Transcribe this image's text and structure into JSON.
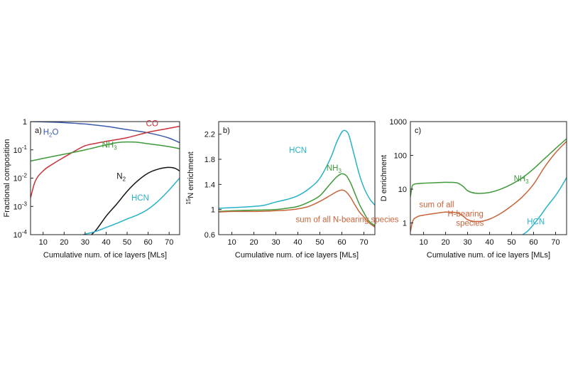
{
  "colors": {
    "h2o": "#3b5bab",
    "co": "#c8323a",
    "nh3": "#3f9a3a",
    "n2": "#111111",
    "hcn": "#27b2c8",
    "sum": "#c8643a",
    "axis": "#222222"
  },
  "chart_data": [
    {
      "type": "line",
      "panel": "a)",
      "xlabel": "Cumulative num. of ice layers [MLs]",
      "ylabel": "Fractional composition",
      "xlim": [
        4,
        75
      ],
      "ylim": [
        0.0001,
        1
      ],
      "yscale": "log",
      "xticks": [
        10,
        20,
        30,
        40,
        50,
        60,
        70
      ],
      "yticks": [
        {
          "v": 1,
          "base": "1",
          "exp": ""
        },
        {
          "v": 0.1,
          "base": "10",
          "exp": "-1"
        },
        {
          "v": 0.01,
          "base": "10",
          "exp": "-2"
        },
        {
          "v": 0.001,
          "base": "10",
          "exp": "-3"
        },
        {
          "v": 0.0001,
          "base": "10",
          "exp": "-4"
        }
      ],
      "series": [
        {
          "key": "h2o",
          "label": "H",
          "sub": "2",
          "suffix": "O",
          "labelAt": [
            10,
            0.34
          ],
          "x": [
            4,
            10,
            20,
            30,
            40,
            50,
            60,
            70,
            75
          ],
          "y": [
            1.0,
            0.98,
            0.92,
            0.82,
            0.68,
            0.52,
            0.4,
            0.26,
            0.18
          ]
        },
        {
          "key": "co",
          "label": "CO",
          "sub": "",
          "suffix": "",
          "labelAt": [
            59,
            0.68
          ],
          "x": [
            4,
            6,
            10,
            15,
            20,
            25,
            30,
            35,
            40,
            50,
            60,
            70,
            75
          ],
          "y": [
            0.002,
            0.007,
            0.018,
            0.033,
            0.055,
            0.09,
            0.14,
            0.17,
            0.2,
            0.27,
            0.42,
            0.58,
            0.68
          ]
        },
        {
          "key": "nh3",
          "label": "NH",
          "sub": "3",
          "suffix": "",
          "labelAt": [
            38,
            0.12
          ],
          "x": [
            4,
            10,
            20,
            30,
            40,
            45,
            50,
            55,
            60,
            70,
            75
          ],
          "y": [
            0.04,
            0.05,
            0.07,
            0.1,
            0.15,
            0.18,
            0.19,
            0.185,
            0.165,
            0.13,
            0.11
          ]
        },
        {
          "key": "n2",
          "label": "N",
          "sub": "2",
          "suffix": "",
          "labelAt": [
            45,
            0.0095
          ],
          "x": [
            33,
            35,
            40,
            45,
            50,
            55,
            60,
            65,
            70,
            73,
            75
          ],
          "y": [
            0.0001,
            0.00014,
            0.00045,
            0.0012,
            0.0034,
            0.008,
            0.015,
            0.021,
            0.024,
            0.022,
            0.018
          ]
        },
        {
          "key": "hcn",
          "label": "HCN",
          "sub": "",
          "suffix": "",
          "labelAt": [
            52,
            0.0016
          ],
          "x": [
            29,
            35,
            40,
            45,
            50,
            55,
            60,
            65,
            70,
            73,
            75
          ],
          "y": [
            0.0001,
            0.00013,
            0.00018,
            0.00025,
            0.00036,
            0.0005,
            0.0008,
            0.0016,
            0.0038,
            0.0068,
            0.01
          ]
        }
      ]
    },
    {
      "type": "line",
      "panel": "b)",
      "xlabel": "Cumulative num. of ice layers [MLs]",
      "ylabel_sup": "15",
      "ylabel": "N enrichment",
      "xlim": [
        4,
        75
      ],
      "ylim": [
        0.6,
        2.4
      ],
      "yscale": "linear",
      "xticks": [
        10,
        20,
        30,
        40,
        50,
        60,
        70
      ],
      "yticks": [
        {
          "v": 0.6,
          "base": "0.6",
          "exp": ""
        },
        {
          "v": 1,
          "base": "1",
          "exp": ""
        },
        {
          "v": 1.4,
          "base": "1.4",
          "exp": ""
        },
        {
          "v": 1.8,
          "base": "1.8",
          "exp": ""
        },
        {
          "v": 2.2,
          "base": "2.2",
          "exp": ""
        }
      ],
      "series": [
        {
          "key": "hcn",
          "label": "HCN",
          "sub": "",
          "suffix": "",
          "labelAt": [
            36,
            1.9
          ],
          "x": [
            4,
            10,
            20,
            25,
            30,
            35,
            40,
            45,
            50,
            55,
            58,
            61,
            63,
            65,
            68,
            70,
            73,
            75
          ],
          "y": [
            1.02,
            1.03,
            1.05,
            1.07,
            1.12,
            1.16,
            1.22,
            1.33,
            1.5,
            1.83,
            2.1,
            2.26,
            2.2,
            1.95,
            1.55,
            1.35,
            1.15,
            1.07
          ]
        },
        {
          "key": "nh3",
          "label": "NH",
          "sub": "3",
          "suffix": "",
          "labelAt": [
            53,
            1.62
          ],
          "x": [
            4,
            10,
            20,
            30,
            35,
            40,
            45,
            50,
            55,
            58,
            60,
            62,
            64,
            66,
            68,
            70,
            72,
            75
          ],
          "y": [
            0.97,
            0.98,
            0.99,
            1.0,
            1.02,
            1.05,
            1.12,
            1.22,
            1.42,
            1.53,
            1.57,
            1.54,
            1.42,
            1.25,
            1.08,
            0.95,
            0.83,
            0.74
          ]
        },
        {
          "key": "sum",
          "label": "sum of all N-bearing species",
          "sub": "",
          "suffix": "",
          "labelAt": [
            39,
            0.8
          ],
          "x": [
            4,
            10,
            20,
            30,
            35,
            40,
            45,
            50,
            55,
            58,
            60,
            62,
            64,
            66,
            68,
            70,
            72,
            75
          ],
          "y": [
            0.96,
            0.97,
            0.97,
            0.98,
            0.99,
            1.01,
            1.05,
            1.13,
            1.23,
            1.29,
            1.31,
            1.28,
            1.19,
            1.07,
            0.96,
            0.88,
            0.8,
            0.72
          ]
        }
      ]
    },
    {
      "type": "line",
      "panel": "c)",
      "xlabel": "Cumulative num. of ice layers [MLs]",
      "ylabel": "D enrichment",
      "xlim": [
        4,
        75
      ],
      "ylim": [
        0.45,
        1000
      ],
      "yscale": "log",
      "xticks": [
        10,
        20,
        30,
        40,
        50,
        60,
        70
      ],
      "yticks": [
        {
          "v": 1,
          "base": "1",
          "exp": ""
        },
        {
          "v": 10,
          "base": "10",
          "exp": ""
        },
        {
          "v": 100,
          "base": "100",
          "exp": ""
        },
        {
          "v": 1000,
          "base": "1000",
          "exp": ""
        }
      ],
      "series": [
        {
          "key": "nh3",
          "label": "NH",
          "sub": "3",
          "suffix": "",
          "labelAt": [
            51,
            17
          ],
          "x": [
            4,
            5,
            7,
            10,
            15,
            20,
            25,
            28,
            30,
            35,
            40,
            45,
            50,
            55,
            60,
            65,
            70,
            75
          ],
          "y": [
            6,
            13,
            14.5,
            15,
            15.5,
            16,
            15.5,
            12,
            9,
            7.5,
            8,
            10,
            14,
            22,
            40,
            80,
            160,
            310
          ]
        },
        {
          "key": "sum",
          "label": "sum of all",
          "label2": "H-bearing",
          "label3": "species",
          "sub": "",
          "suffix": "",
          "labelAt": [
            8,
            2.9
          ],
          "x": [
            4,
            5,
            7,
            10,
            15,
            20,
            25,
            28,
            30,
            35,
            40,
            45,
            50,
            55,
            60,
            65,
            70,
            75
          ],
          "y": [
            0.55,
            1.1,
            1.5,
            1.7,
            1.9,
            2.1,
            2.0,
            1.6,
            1.25,
            1.1,
            1.3,
            1.9,
            3.2,
            6,
            14,
            45,
            120,
            260
          ]
        },
        {
          "key": "hcn",
          "label": "HCN",
          "sub": "",
          "suffix": "",
          "labelAt": [
            57,
            0.9
          ],
          "x": [
            55,
            57,
            60,
            63,
            66,
            70,
            73,
            75
          ],
          "y": [
            0.45,
            0.55,
            0.9,
            1.6,
            3.0,
            6.5,
            13,
            22
          ]
        }
      ]
    }
  ]
}
